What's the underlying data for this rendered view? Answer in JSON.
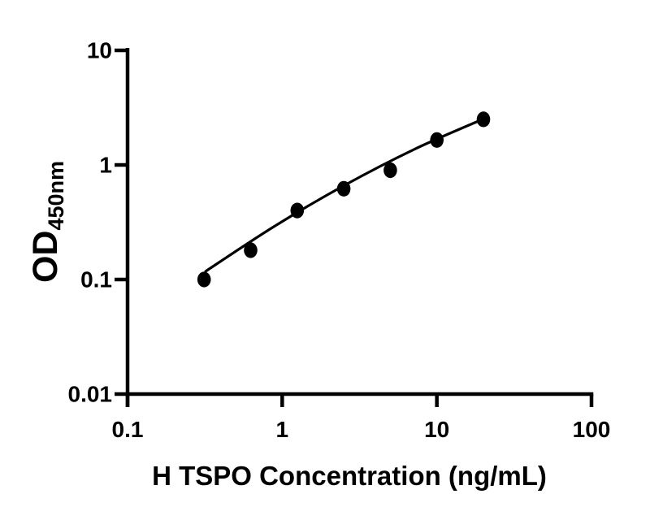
{
  "figure": {
    "background_color": "#ffffff",
    "foreground_color": "#000000"
  },
  "chart_data": {
    "type": "scatter",
    "title": "",
    "xlabel": "H TSPO Concentration (ng/mL)",
    "ylabel": "OD",
    "ylabel_subscript": "450nm",
    "xscale": "log",
    "yscale": "log",
    "xlim": [
      0.1,
      100
    ],
    "ylim": [
      0.01,
      10
    ],
    "xticks": [
      0.1,
      1,
      10,
      100
    ],
    "xtick_labels": [
      "0.1",
      "1",
      "10",
      "100"
    ],
    "yticks": [
      0.01,
      0.1,
      1,
      10
    ],
    "ytick_labels": [
      "0.01",
      "0.1",
      "1",
      "10"
    ],
    "grid": false,
    "legend": false,
    "series": [
      {
        "name": "standard-curve-points",
        "marker": "filled-circle",
        "x": [
          0.3125,
          0.625,
          1.25,
          2.5,
          5,
          10,
          20
        ],
        "y": [
          0.1,
          0.18,
          0.4,
          0.62,
          0.9,
          1.65,
          2.5
        ]
      }
    ],
    "trend_line": {
      "name": "fitted-curve",
      "x": [
        0.32,
        0.9,
        2.53,
        7.16,
        20.3
      ],
      "y": [
        0.118,
        0.294,
        0.665,
        1.37,
        2.54
      ]
    },
    "marker_color": "#000000",
    "line_color": "#000000",
    "axis_color": "#000000"
  }
}
